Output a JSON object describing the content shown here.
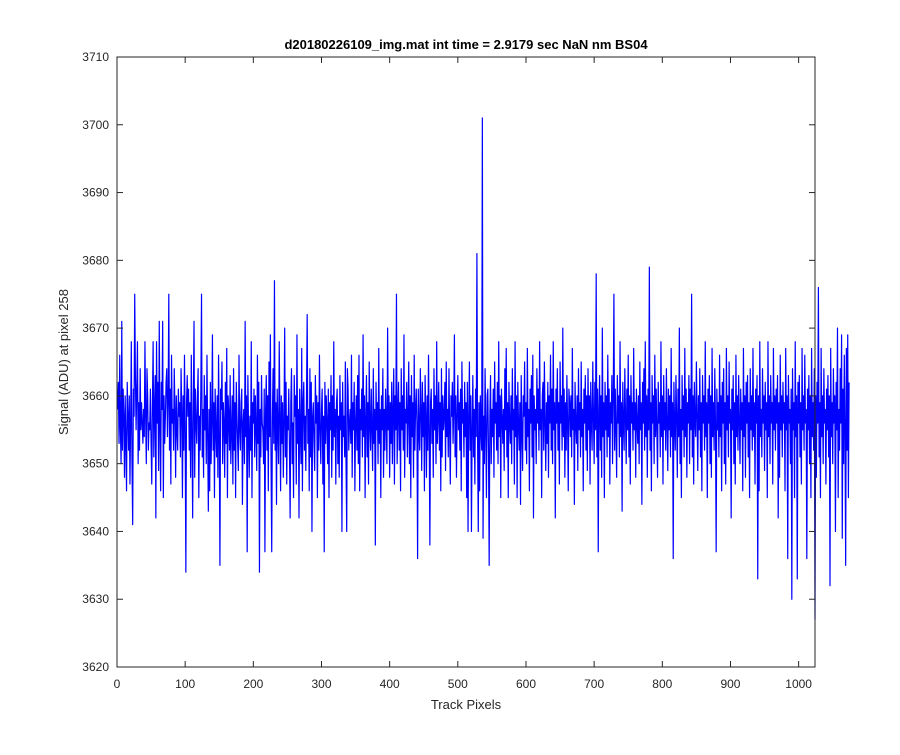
{
  "chart_data": {
    "type": "line",
    "title": "d20180226109_img.mat int time = 2.9179 sec  NaN nm BS04",
    "xlabel": "Track Pixels",
    "ylabel": "Signal (ADU) at pixel 258",
    "xlim": [
      0,
      1024
    ],
    "ylim": [
      3620,
      3710
    ],
    "xticks": [
      0,
      100,
      200,
      300,
      400,
      500,
      600,
      700,
      800,
      900,
      1000
    ],
    "yticks": [
      3620,
      3630,
      3640,
      3650,
      3660,
      3670,
      3680,
      3690,
      3700,
      3710
    ],
    "grid": false,
    "legend": "none",
    "series_color": "#0000ff",
    "series": [
      {
        "x_start": 1,
        "x_step": 1,
        "values": [
          3658,
          3662,
          3653,
          3666,
          3655,
          3650,
          3671,
          3652,
          3661,
          3657,
          3648,
          3660,
          3653,
          3646,
          3662,
          3657,
          3652,
          3660,
          3647,
          3656,
          3668,
          3650,
          3641,
          3661,
          3657,
          3675,
          3663,
          3655,
          3661,
          3668,
          3650,
          3659,
          3652,
          3664,
          3655,
          3659,
          3656,
          3653,
          3658,
          3654,
          3668,
          3657,
          3650,
          3664,
          3660,
          3652,
          3656,
          3655,
          3661,
          3653,
          3647,
          3659,
          3668,
          3651,
          3658,
          3663,
          3642,
          3668,
          3656,
          3662,
          3649,
          3671,
          3655,
          3646,
          3662,
          3658,
          3671,
          3645,
          3660,
          3653,
          3657,
          3662,
          3664,
          3654,
          3659,
          3675,
          3652,
          3661,
          3647,
          3666,
          3656,
          3658,
          3652,
          3664,
          3658,
          3648,
          3660,
          3655,
          3652,
          3661,
          3657,
          3659,
          3651,
          3664,
          3658,
          3645,
          3660,
          3652,
          3666,
          3655,
          3634,
          3659,
          3663,
          3657,
          3661,
          3652,
          3659,
          3648,
          3666,
          3655,
          3642,
          3659,
          3671,
          3648,
          3661,
          3656,
          3653,
          3660,
          3664,
          3645,
          3657,
          3652,
          3661,
          3675,
          3651,
          3658,
          3648,
          3663,
          3655,
          3660,
          3650,
          3666,
          3654,
          3643,
          3658,
          3646,
          3662,
          3650,
          3656,
          3669,
          3652,
          3659,
          3645,
          3661,
          3655,
          3651,
          3660,
          3648,
          3666,
          3654,
          3635,
          3661,
          3658,
          3665,
          3650,
          3659,
          3656,
          3648,
          3662,
          3653,
          3667,
          3645,
          3660,
          3657,
          3652,
          3663,
          3650,
          3655,
          3660,
          3647,
          3664,
          3652,
          3659,
          3645,
          3662,
          3657,
          3653,
          3649,
          3666,
          3655,
          3652,
          3659,
          3661,
          3644,
          3656,
          3658,
          3650,
          3671,
          3654,
          3660,
          3637,
          3663,
          3655,
          3648,
          3657,
          3652,
          3668,
          3645,
          3659,
          3656,
          3661,
          3651,
          3660,
          3655,
          3649,
          3666,
          3653,
          3662,
          3634,
          3658,
          3651,
          3663,
          3656,
          3655,
          3650,
          3661,
          3637,
          3658,
          3663,
          3652,
          3660,
          3646,
          3665,
          3654,
          3669,
          3650,
          3637,
          3657,
          3664,
          3653,
          3677,
          3652,
          3659,
          3644,
          3661,
          3655,
          3650,
          3668,
          3657,
          3646,
          3660,
          3653,
          3659,
          3648,
          3656,
          3670,
          3651,
          3662,
          3647,
          3657,
          3655,
          3661,
          3652,
          3642,
          3659,
          3664,
          3650,
          3656,
          3645,
          3663,
          3657,
          3660,
          3647,
          3669,
          3653,
          3658,
          3642,
          3661,
          3655,
          3650,
          3667,
          3646,
          3659,
          3662,
          3652,
          3657,
          3649,
          3660,
          3672,
          3653,
          3658,
          3646,
          3664,
          3651,
          3662,
          3640,
          3657,
          3659,
          3653,
          3649,
          3663,
          3656,
          3660,
          3645,
          3659,
          3652,
          3666,
          3655,
          3650,
          3658,
          3661,
          3647,
          3657,
          3637,
          3662,
          3653,
          3660,
          3656,
          3650,
          3661,
          3645,
          3659,
          3655,
          3663,
          3648,
          3660,
          3652,
          3668,
          3654,
          3658,
          3647,
          3659,
          3661,
          3650,
          3657,
          3648,
          3663,
          3655,
          3659,
          3640,
          3662,
          3654,
          3657,
          3651,
          3665,
          3650,
          3640,
          3664,
          3661,
          3652,
          3656,
          3658,
          3653,
          3666,
          3648,
          3659,
          3655,
          3662,
          3646,
          3656,
          3660,
          3652,
          3663,
          3650,
          3666,
          3646,
          3658,
          3655,
          3661,
          3651,
          3669,
          3654,
          3660,
          3645,
          3657,
          3663,
          3651,
          3659,
          3647,
          3665,
          3656,
          3652,
          3661,
          3655,
          3649,
          3664,
          3653,
          3658,
          3638,
          3662,
          3655,
          3659,
          3650,
          3667,
          3653,
          3658,
          3645,
          3660,
          3655,
          3664,
          3648,
          3658,
          3652,
          3661,
          3656,
          3650,
          3670,
          3655,
          3660,
          3648,
          3659,
          3653,
          3662,
          3650,
          3658,
          3664,
          3647,
          3660,
          3655,
          3675,
          3650,
          3657,
          3662,
          3652,
          3659,
          3646,
          3664,
          3655,
          3660,
          3652,
          3669,
          3648,
          3658,
          3656,
          3662,
          3651,
          3657,
          3665,
          3650,
          3660,
          3645,
          3663,
          3654,
          3659,
          3648,
          3666,
          3652,
          3658,
          3661,
          3656,
          3636,
          3661,
          3655,
          3652,
          3664,
          3658,
          3649,
          3662,
          3654,
          3659,
          3646,
          3663,
          3657,
          3648,
          3660,
          3652,
          3666,
          3655,
          3638,
          3659,
          3661,
          3653,
          3658,
          3648,
          3664,
          3655,
          3660,
          3650,
          3668,
          3653,
          3657,
          3662,
          3652,
          3659,
          3646,
          3664,
          3651,
          3660,
          3655,
          3657,
          3662,
          3649,
          3665,
          3654,
          3658,
          3651,
          3664,
          3655,
          3647,
          3660,
          3657,
          3662,
          3653,
          3658,
          3669,
          3651,
          3660,
          3648,
          3657,
          3663,
          3655,
          3659,
          3652,
          3661,
          3646,
          3665,
          3656,
          3658,
          3651,
          3662,
          3654,
          3659,
          3645,
          3662,
          3640,
          3657,
          3665,
          3652,
          3660,
          3640,
          3655,
          3663,
          3651,
          3658,
          3647,
          3661,
          3654,
          3681,
          3653,
          3640,
          3659,
          3646,
          3660,
          3655,
          3652,
          3701,
          3639,
          3657,
          3650,
          3664,
          3655,
          3645,
          3660,
          3661,
          3652,
          3635,
          3657,
          3663,
          3650,
          3658,
          3654,
          3661,
          3648,
          3665,
          3656,
          3659,
          3652,
          3662,
          3650,
          3668,
          3654,
          3660,
          3645,
          3661,
          3657,
          3653,
          3658,
          3649,
          3664,
          3655,
          3667,
          3651,
          3659,
          3645,
          3662,
          3656,
          3653,
          3660,
          3650,
          3664,
          3655,
          3658,
          3647,
          3668,
          3654,
          3660,
          3645,
          3662,
          3656,
          3652,
          3659,
          3644,
          3663,
          3655,
          3649,
          3660,
          3657,
          3665,
          3652,
          3659,
          3650,
          3667,
          3654,
          3658,
          3646,
          3661,
          3656,
          3663,
          3651,
          3666,
          3642,
          3660,
          3655,
          3658,
          3650,
          3664,
          3656,
          3661,
          3652,
          3668,
          3655,
          3658,
          3645,
          3660,
          3662,
          3652,
          3665,
          3656,
          3649,
          3659,
          3653,
          3662,
          3648,
          3660,
          3656,
          3666,
          3652,
          3661,
          3650,
          3668,
          3655,
          3659,
          3642,
          3661,
          3656,
          3664,
          3652,
          3659,
          3647,
          3665,
          3656,
          3660,
          3652,
          3670,
          3654,
          3661,
          3648,
          3659,
          3652,
          3663,
          3656,
          3646,
          3661,
          3659,
          3654,
          3660,
          3651,
          3667,
          3655,
          3658,
          3644,
          3662,
          3656,
          3653,
          3660,
          3649,
          3664,
          3655,
          3659,
          3651,
          3665,
          3654,
          3658,
          3646,
          3661,
          3656,
          3663,
          3652,
          3660,
          3649,
          3664,
          3655,
          3660,
          3647,
          3662,
          3656,
          3652,
          3665,
          3657,
          3650,
          3662,
          3655,
          3678,
          3651,
          3661,
          3637,
          3658,
          3663,
          3652,
          3660,
          3648,
          3670,
          3654,
          3659,
          3645,
          3662,
          3655,
          3660,
          3651,
          3666,
          3654,
          3661,
          3647,
          3659,
          3656,
          3663,
          3650,
          3660,
          3675,
          3652,
          3661,
          3655,
          3648,
          3663,
          3656,
          3660,
          3651,
          3668,
          3654,
          3659,
          3643,
          3662,
          3656,
          3652,
          3664,
          3657,
          3650,
          3661,
          3655,
          3666,
          3651,
          3660,
          3647,
          3663,
          3656,
          3659,
          3652,
          3667,
          3655,
          3659,
          3648,
          3661,
          3656,
          3653,
          3660,
          3650,
          3665,
          3655,
          3659,
          3644,
          3662,
          3656,
          3664,
          3652,
          3668,
          3654,
          3660,
          3648,
          3661,
          3655,
          3679,
          3652,
          3659,
          3646,
          3663,
          3656,
          3660,
          3650,
          3666,
          3654,
          3661,
          3655,
          3648,
          3662,
          3656,
          3659,
          3651,
          3668,
          3654,
          3660,
          3647,
          3663,
          3655,
          3659,
          3652,
          3664,
          3656,
          3649,
          3661,
          3655,
          3660,
          3651,
          3667,
          3654,
          3659,
          3636,
          3662,
          3656,
          3652,
          3663,
          3657,
          3648,
          3661,
          3654,
          3670,
          3650,
          3658,
          3645,
          3663,
          3655,
          3660,
          3651,
          3667,
          3654,
          3661,
          3648,
          3659,
          3656,
          3663,
          3650,
          3661,
          3655,
          3675,
          3651,
          3660,
          3647,
          3662,
          3656,
          3654,
          3665,
          3657,
          3649,
          3660,
          3655,
          3664,
          3651,
          3659,
          3646,
          3663,
          3656,
          3660,
          3652,
          3668,
          3654,
          3659,
          3645,
          3661,
          3656,
          3663,
          3650,
          3660,
          3648,
          3667,
          3654,
          3659,
          3652,
          3664,
          3656,
          3637,
          3661,
          3655,
          3659,
          3651,
          3666,
          3654,
          3660,
          3646,
          3662,
          3656,
          3664,
          3650,
          3659,
          3647,
          3667,
          3655,
          3660,
          3651,
          3665,
          3656,
          3658,
          3642,
          3661,
          3655,
          3663,
          3650,
          3659,
          3647,
          3666,
          3654,
          3660,
          3652,
          3663,
          3656,
          3650,
          3661,
          3655,
          3659,
          3646,
          3667,
          3654,
          3660,
          3648,
          3662,
          3656,
          3663,
          3651,
          3659,
          3645,
          3664,
          3655,
          3660,
          3652,
          3667,
          3654,
          3659,
          3647,
          3661,
          3656,
          3663,
          3633,
          3660,
          3646,
          3668,
          3654,
          3658,
          3651,
          3664,
          3656,
          3660,
          3649,
          3662,
          3655,
          3659,
          3645,
          3668,
          3654,
          3660,
          3650,
          3663,
          3656,
          3659,
          3647,
          3667,
          3655,
          3660,
          3652,
          3661,
          3656,
          3663,
          3642,
          3659,
          3648,
          3666,
          3655,
          3660,
          3651,
          3662,
          3656,
          3659,
          3646,
          3667,
          3655,
          3660,
          3636,
          3663,
          3656,
          3658,
          3650,
          3661,
          3630,
          3664,
          3655,
          3659,
          3645,
          3668,
          3654,
          3660,
          3633,
          3662,
          3656,
          3663,
          3651,
          3659,
          3647,
          3667,
          3655,
          3660,
          3652,
          3666,
          3656,
          3658,
          3636,
          3661,
          3655,
          3663,
          3650,
          3660,
          3645,
          3667,
          3654,
          3659,
          3652,
          3664,
          3627,
          3660,
          3648,
          3662,
          3656,
          3676,
          3651,
          3659,
          3645,
          3667,
          3654,
          3660,
          3650,
          3664,
          3656,
          3658,
          3647,
          3661,
          3655,
          3663,
          3651,
          3660,
          3632,
          3667,
          3654,
          3659,
          3650,
          3664,
          3656,
          3660,
          3640,
          3662,
          3655,
          3670,
          3645,
          3658,
          3652,
          3664,
          3656,
          3669,
          3639,
          3661,
          3650,
          3666,
          3655,
          3635,
          3667,
          3652,
          3669,
          3645,
          3662
        ]
      }
    ]
  }
}
